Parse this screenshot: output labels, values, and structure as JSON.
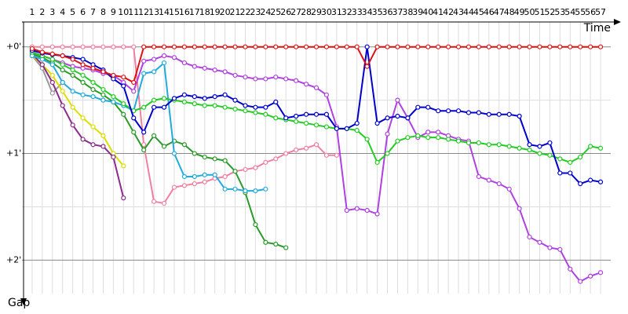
{
  "chart_data": {
    "type": "line",
    "x_label": "Time",
    "y_label": "Gap",
    "x": [
      1,
      2,
      3,
      4,
      5,
      6,
      7,
      8,
      9,
      10,
      11,
      12,
      13,
      14,
      15,
      16,
      17,
      18,
      19,
      20,
      21,
      22,
      23,
      24,
      25,
      26,
      27,
      28,
      29,
      30,
      31,
      32,
      33,
      34,
      35,
      36,
      37,
      38,
      39,
      40,
      41,
      42,
      43,
      44,
      45,
      46,
      47,
      48,
      49,
      50,
      51,
      52,
      53,
      54,
      55,
      56,
      57
    ],
    "xlim": [
      0,
      58
    ],
    "ylim": [
      -14,
      145
    ],
    "yticks": [
      {
        "value": 0,
        "label": "+0'"
      },
      {
        "value": 60,
        "label": "+1'"
      },
      {
        "value": 120,
        "label": "+2'"
      }
    ],
    "minor_yticks": [
      30,
      90
    ],
    "grid": true,
    "series": [
      {
        "color": "#f080a0",
        "values": [
          0,
          0,
          0,
          0,
          0,
          0,
          0,
          0,
          0,
          0,
          0,
          55,
          87,
          88,
          79,
          78,
          77,
          76,
          74,
          73,
          70,
          69,
          68,
          65,
          63,
          60,
          58,
          57,
          55,
          61,
          61,
          null,
          null,
          null,
          null,
          null,
          null,
          null,
          null,
          null,
          null,
          null,
          null,
          null,
          null,
          null,
          null,
          null,
          null,
          null,
          null,
          null,
          null,
          null,
          null,
          null,
          null
        ]
      },
      {
        "color": "#999999",
        "values": [
          5,
          12,
          26,
          20,
          null,
          null,
          null,
          null,
          null,
          null,
          null,
          null,
          null,
          null,
          null,
          null,
          null,
          null,
          null,
          null,
          null,
          null,
          null,
          null,
          null,
          null,
          null,
          null,
          null,
          null,
          null,
          null,
          null,
          null,
          null,
          null,
          null,
          null,
          null,
          null,
          null,
          null,
          null,
          null,
          null,
          null,
          null,
          null,
          null,
          null,
          null,
          null,
          null,
          null,
          null,
          null,
          null
        ]
      },
      {
        "color": "#dddd00",
        "values": [
          5,
          10,
          16,
          25,
          34,
          40,
          45,
          50,
          60,
          67,
          null,
          null,
          null,
          null,
          null,
          null,
          null,
          null,
          null,
          null,
          null,
          null,
          null,
          null,
          null,
          null,
          null,
          null,
          null,
          null,
          null,
          null,
          null,
          null,
          null,
          null,
          null,
          null,
          null,
          null,
          null,
          null,
          null,
          null,
          null,
          null,
          null,
          null,
          null,
          null,
          null,
          null,
          null,
          null,
          null,
          null,
          null
        ]
      },
      {
        "color": "#8b2b8b",
        "values": [
          4,
          10,
          20,
          33,
          44,
          52,
          55,
          56,
          62,
          85,
          null,
          null,
          null,
          null,
          null,
          null,
          null,
          null,
          null,
          null,
          null,
          null,
          null,
          null,
          null,
          null,
          null,
          null,
          null,
          null,
          null,
          null,
          null,
          null,
          null,
          null,
          null,
          null,
          null,
          null,
          null,
          null,
          null,
          null,
          null,
          null,
          null,
          null,
          null,
          null,
          null,
          null,
          null,
          null,
          null,
          null,
          null
        ]
      },
      {
        "color": "#2a9a2a",
        "values": [
          4,
          6,
          9,
          13,
          16,
          20,
          24,
          27,
          31,
          38,
          48,
          58,
          50,
          56,
          53,
          55,
          60,
          62,
          63,
          64,
          70,
          82,
          100,
          110,
          111,
          113,
          null,
          null,
          null,
          null,
          null,
          null,
          null,
          null,
          null,
          null,
          null,
          null,
          null,
          null,
          null,
          null,
          null,
          null,
          null,
          null,
          null,
          null,
          null,
          null,
          null,
          null,
          null,
          null,
          null,
          null,
          null
        ]
      },
      {
        "color": "#22aadd",
        "values": [
          5,
          7,
          10,
          20,
          25,
          27,
          28,
          30,
          31,
          33,
          36,
          15,
          14,
          9,
          60,
          73,
          73,
          72,
          72,
          80,
          80,
          81,
          81,
          80,
          null,
          null,
          null,
          null,
          null,
          null,
          null,
          null,
          null,
          null,
          null,
          null,
          null,
          null,
          null,
          null,
          null,
          null,
          null,
          null,
          null,
          null,
          null,
          null,
          null,
          null,
          null,
          null,
          null,
          null,
          null,
          null,
          null
        ]
      },
      {
        "color": "#b040e0",
        "values": [
          3,
          5,
          7,
          9,
          11,
          12,
          13,
          15,
          16,
          20,
          25,
          8,
          7,
          5,
          6,
          9,
          11,
          12,
          13,
          14,
          16,
          17,
          18,
          18,
          17,
          18,
          19,
          21,
          23,
          27,
          45,
          92,
          91,
          92,
          94,
          49,
          30,
          40,
          51,
          48,
          48,
          50,
          52,
          53,
          73,
          75,
          77,
          80,
          91,
          107,
          110,
          113,
          114,
          125,
          132,
          129,
          127
        ]
      },
      {
        "color": "#22cc22",
        "values": [
          3,
          5,
          7,
          10,
          13,
          16,
          20,
          24,
          28,
          32,
          36,
          34,
          30,
          29,
          30,
          31,
          32,
          33,
          33,
          34,
          35,
          36,
          37,
          38,
          40,
          41,
          42,
          43,
          44,
          45,
          46,
          46,
          47,
          52,
          65,
          60,
          53,
          51,
          50,
          51,
          51,
          52,
          53,
          54,
          54,
          55,
          55,
          56,
          57,
          58,
          60,
          61,
          63,
          65,
          62,
          56,
          57
        ]
      },
      {
        "color": "#0000cc",
        "values": [
          2,
          3.5,
          4.4,
          5,
          6,
          7,
          10,
          13,
          18,
          22,
          40,
          48,
          34,
          34,
          29,
          27,
          28,
          29,
          28,
          27,
          30,
          33,
          34,
          34,
          31,
          40,
          39,
          38,
          38,
          38,
          46,
          46,
          43,
          0,
          43,
          40,
          39,
          40,
          34,
          34,
          36,
          36,
          36,
          37,
          37,
          38,
          38,
          38,
          39,
          55,
          56,
          54,
          71,
          71,
          77,
          75,
          76
        ]
      },
      {
        "color": "#dd1111",
        "values": [
          1,
          3,
          4,
          5,
          7,
          10,
          12,
          14,
          16,
          17,
          20,
          0,
          0,
          0,
          0,
          0,
          0,
          0,
          0,
          0,
          0,
          0,
          0,
          0,
          0,
          0,
          0,
          0,
          0,
          0,
          0,
          0,
          0,
          11,
          0,
          0,
          0,
          0,
          0,
          0,
          0,
          0,
          0,
          0,
          0,
          0,
          0,
          0,
          0,
          0,
          0,
          0,
          0,
          0,
          0,
          0,
          0
        ]
      }
    ]
  }
}
